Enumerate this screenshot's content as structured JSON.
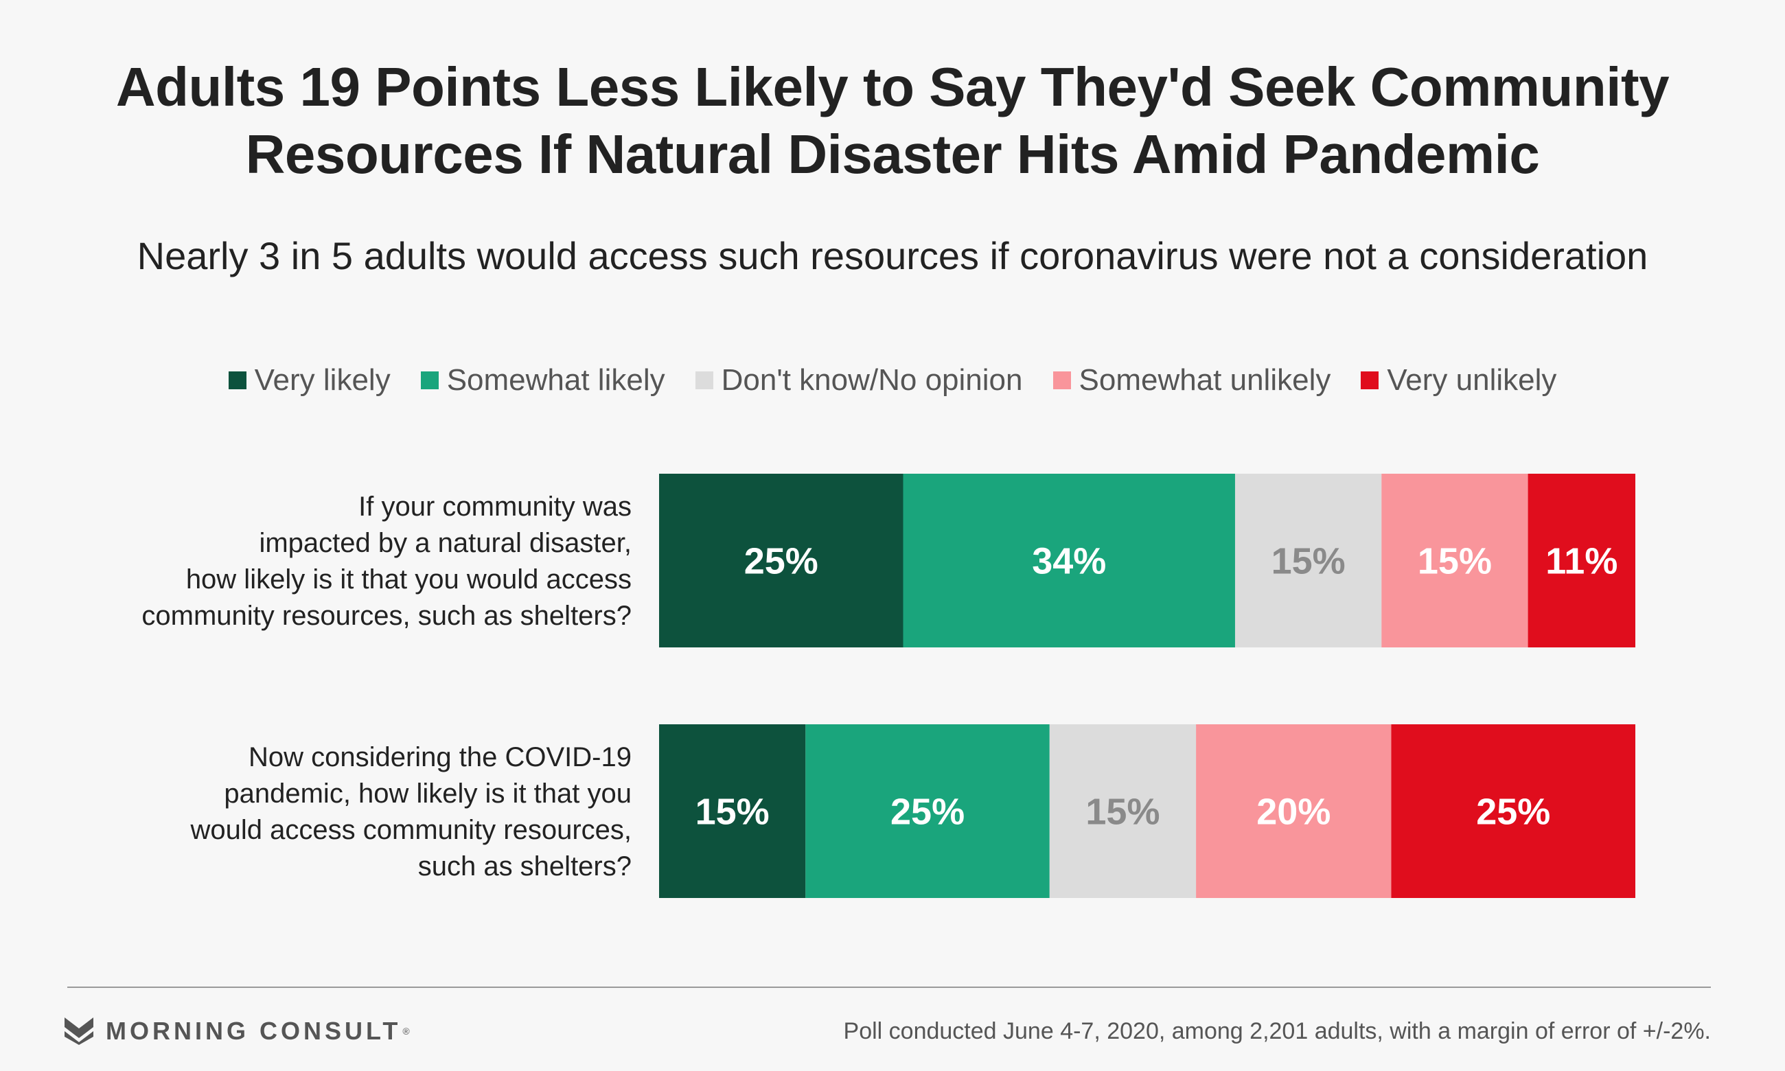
{
  "title_lines": [
    "Adults 19 Points Less Likely to Say They'd Seek Community",
    "Resources If Natural Disaster Hits Amid Pandemic"
  ],
  "subtitle": "Nearly 3 in 5 adults would access such resources if coronavirus were not a consideration",
  "chart_data": {
    "type": "bar",
    "orientation": "horizontal",
    "stacked": true,
    "title": "Adults 19 Points Less Likely to Say They'd Seek Community Resources If Natural Disaster Hits Amid Pandemic",
    "subtitle": "Nearly 3 in 5 adults would access such resources if coronavirus were not a consideration",
    "legend_position": "top-center",
    "grid": false,
    "xlim": [
      0,
      100
    ],
    "unit": "%",
    "categories": [
      {
        "label_lines": [
          "If your community was",
          "impacted by a natural disaster,",
          "how likely is it that you would access",
          "community resources, such as shelters?"
        ]
      },
      {
        "label_lines": [
          "Now considering the COVID-19",
          "pandemic, how likely is it that you",
          "would access community resources,",
          "such as shelters?"
        ]
      }
    ],
    "series": [
      {
        "name": "Very likely",
        "color": "#0d523d",
        "text_color": "#ffffff",
        "values": [
          25,
          15
        ]
      },
      {
        "name": "Somewhat likely",
        "color": "#1aa57c",
        "text_color": "#ffffff",
        "values": [
          34,
          25
        ]
      },
      {
        "name": "Don't know/No opinion",
        "color": "#dcdcdc",
        "text_color": "#8a8a8a",
        "values": [
          15,
          15
        ]
      },
      {
        "name": "Somewhat unlikely",
        "color": "#f9959b",
        "text_color": "#ffffff",
        "values": [
          15,
          20
        ]
      },
      {
        "name": "Very unlikely",
        "color": "#e00d1d",
        "text_color": "#ffffff",
        "values": [
          11,
          25
        ]
      }
    ]
  },
  "footer": {
    "brand": "MORNING CONSULT",
    "brand_mark": "®",
    "logo_icon": "morning-consult-m-logo",
    "source": "Poll conducted June 4-7, 2020, among 2,201 adults, with a margin of error of +/-2%."
  }
}
